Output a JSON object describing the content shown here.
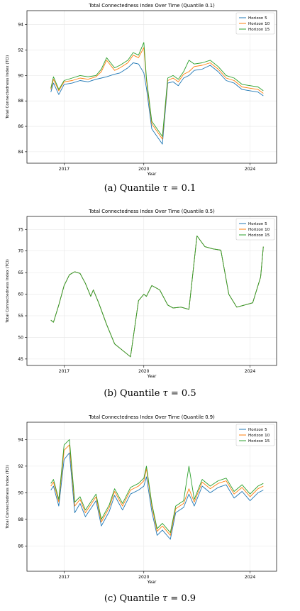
{
  "panels": [
    {
      "caption_label": "(a)",
      "caption_text": "Quantile",
      "caption_symbol": "τ",
      "caption_value": "= 0.1",
      "chart": {
        "type": "line",
        "title": "Total Connectedness Index Over Time (Quantile 0.1)",
        "xlabel": "Year",
        "ylabel": "Total Connectedness Index (TCI)",
        "xlim": [
          2015.6,
          2025.0
        ],
        "ylim": [
          83.1,
          95.1
        ],
        "yticks": [
          84,
          86,
          88,
          90,
          92,
          94
        ],
        "xticks": [
          2017,
          2020,
          2024
        ],
        "grid": true,
        "legend_position": "top-right",
        "series": [
          {
            "name": "Horizon 5",
            "color": "#1f77b4",
            "x": [
              2016.5,
              2016.6,
              2016.8,
              2017.0,
              2017.3,
              2017.6,
              2017.9,
              2018.2,
              2018.4,
              2018.6,
              2018.9,
              2019.1,
              2019.4,
              2019.6,
              2019.8,
              2020.0,
              2020.1,
              2020.3,
              2020.5,
              2020.7,
              2020.9,
              2021.1,
              2021.3,
              2021.5,
              2021.7,
              2021.9,
              2022.2,
              2022.5,
              2022.8,
              2023.1,
              2023.4,
              2023.7,
              2024.0,
              2024.3,
              2024.5
            ],
            "y": [
              88.7,
              89.4,
              88.5,
              89.3,
              89.4,
              89.6,
              89.5,
              89.7,
              89.8,
              89.9,
              90.1,
              90.2,
              90.6,
              91.0,
              90.9,
              90.2,
              89.0,
              85.8,
              85.2,
              84.6,
              89.4,
              89.5,
              89.2,
              89.8,
              90.0,
              90.4,
              90.5,
              90.8,
              90.3,
              89.6,
              89.4,
              88.9,
              88.8,
              88.7,
              88.4
            ]
          },
          {
            "name": "Horizon 10",
            "color": "#ff7f0e",
            "x": [
              2016.5,
              2016.6,
              2016.8,
              2017.0,
              2017.3,
              2017.6,
              2017.9,
              2018.2,
              2018.4,
              2018.6,
              2018.9,
              2019.1,
              2019.4,
              2019.6,
              2019.8,
              2020.0,
              2020.1,
              2020.3,
              2020.5,
              2020.7,
              2020.9,
              2021.1,
              2021.3,
              2021.5,
              2021.7,
              2021.9,
              2022.2,
              2022.5,
              2022.8,
              2023.1,
              2023.4,
              2023.7,
              2024.0,
              2024.3,
              2024.5
            ],
            "y": [
              88.9,
              89.7,
              88.8,
              89.5,
              89.6,
              89.8,
              89.7,
              89.9,
              90.3,
              91.2,
              90.4,
              90.6,
              91.0,
              91.6,
              91.4,
              92.2,
              89.6,
              86.2,
              85.6,
              85.0,
              89.6,
              89.8,
              89.5,
              90.1,
              90.3,
              90.7,
              90.8,
              91.0,
              90.5,
              89.8,
              89.6,
              89.1,
              89.0,
              88.9,
              88.6
            ]
          },
          {
            "name": "Horizon 15",
            "color": "#2ca02c",
            "x": [
              2016.5,
              2016.6,
              2016.8,
              2017.0,
              2017.3,
              2017.6,
              2017.9,
              2018.2,
              2018.4,
              2018.6,
              2018.9,
              2019.1,
              2019.4,
              2019.6,
              2019.8,
              2020.0,
              2020.1,
              2020.3,
              2020.5,
              2020.7,
              2020.9,
              2021.1,
              2021.3,
              2021.5,
              2021.7,
              2021.9,
              2022.2,
              2022.5,
              2022.8,
              2023.1,
              2023.4,
              2023.7,
              2024.0,
              2024.3,
              2024.5
            ],
            "y": [
              89.0,
              89.9,
              88.9,
              89.6,
              89.8,
              90.0,
              89.9,
              90.0,
              90.5,
              91.4,
              90.6,
              90.8,
              91.2,
              91.8,
              91.6,
              92.6,
              89.8,
              86.4,
              85.8,
              85.2,
              89.8,
              90.0,
              89.7,
              90.3,
              91.2,
              90.9,
              91.0,
              91.2,
              90.7,
              90.0,
              89.8,
              89.3,
              89.2,
              89.1,
              88.8
            ]
          }
        ]
      }
    },
    {
      "caption_label": "(b)",
      "caption_text": "Quantile",
      "caption_symbol": "τ",
      "caption_value": "= 0.5",
      "chart": {
        "type": "line",
        "title": "Total Connectedness Index Over Time (Quantile 0.5)",
        "xlabel": "Year",
        "ylabel": "Total Connectedness Index (TCI)",
        "xlim": [
          2015.6,
          2025.0
        ],
        "ylim": [
          43.5,
          78.0
        ],
        "yticks": [
          45,
          50,
          55,
          60,
          65,
          70,
          75
        ],
        "xticks": [
          2017,
          2020,
          2024
        ],
        "grid": true,
        "legend_position": "top-right",
        "series": [
          {
            "name": "Horizon 5",
            "color": "#1f77b4",
            "x": [
              2016.5,
              2016.6,
              2016.8,
              2017.0,
              2017.2,
              2017.4,
              2017.6,
              2017.8,
              2018.0,
              2018.1,
              2018.3,
              2018.6,
              2018.9,
              2019.2,
              2019.5,
              2019.8,
              2020.0,
              2020.1,
              2020.3,
              2020.6,
              2020.9,
              2021.1,
              2021.4,
              2021.7,
              2022.0,
              2022.3,
              2022.6,
              2022.9,
              2023.2,
              2023.5,
              2023.8,
              2024.1,
              2024.4,
              2024.5
            ],
            "y": [
              54.0,
              53.5,
              57.5,
              62.0,
              64.5,
              65.2,
              64.8,
              62.5,
              59.5,
              61.0,
              58.0,
              53.0,
              48.5,
              47.0,
              45.5,
              58.5,
              60.0,
              59.5,
              62.0,
              61.0,
              57.5,
              56.8,
              57.0,
              56.5,
              73.5,
              71.0,
              70.5,
              70.2,
              60.0,
              57.0,
              57.5,
              58.0,
              64.0,
              71.0
            ]
          },
          {
            "name": "Horizon 10",
            "color": "#ff7f0e",
            "x": [
              2016.5,
              2016.6,
              2016.8,
              2017.0,
              2017.2,
              2017.4,
              2017.6,
              2017.8,
              2018.0,
              2018.1,
              2018.3,
              2018.6,
              2018.9,
              2019.2,
              2019.5,
              2019.8,
              2020.0,
              2020.1,
              2020.3,
              2020.6,
              2020.9,
              2021.1,
              2021.4,
              2021.7,
              2022.0,
              2022.3,
              2022.6,
              2022.9,
              2023.2,
              2023.5,
              2023.8,
              2024.1,
              2024.4,
              2024.5
            ],
            "y": [
              54.0,
              53.5,
              57.5,
              62.0,
              64.5,
              65.2,
              64.8,
              62.5,
              59.5,
              61.0,
              58.0,
              53.0,
              48.5,
              47.0,
              45.5,
              58.5,
              60.0,
              59.5,
              62.0,
              61.0,
              57.5,
              56.8,
              57.0,
              56.5,
              73.5,
              71.0,
              70.5,
              70.2,
              60.0,
              57.0,
              57.5,
              58.0,
              64.0,
              71.0
            ]
          },
          {
            "name": "Horizon 15",
            "color": "#2ca02c",
            "x": [
              2016.5,
              2016.6,
              2016.8,
              2017.0,
              2017.2,
              2017.4,
              2017.6,
              2017.8,
              2018.0,
              2018.1,
              2018.3,
              2018.6,
              2018.9,
              2019.2,
              2019.5,
              2019.8,
              2020.0,
              2020.1,
              2020.3,
              2020.6,
              2020.9,
              2021.1,
              2021.4,
              2021.7,
              2022.0,
              2022.3,
              2022.6,
              2022.9,
              2023.2,
              2023.5,
              2023.8,
              2024.1,
              2024.4,
              2024.5
            ],
            "y": [
              54.0,
              53.5,
              57.5,
              62.0,
              64.5,
              65.2,
              64.8,
              62.5,
              59.5,
              61.0,
              58.0,
              53.0,
              48.5,
              47.0,
              45.5,
              58.5,
              60.0,
              59.5,
              62.0,
              61.0,
              57.5,
              56.8,
              57.0,
              56.5,
              73.5,
              71.0,
              70.5,
              70.2,
              60.0,
              57.0,
              57.5,
              58.0,
              64.0,
              71.0
            ]
          }
        ]
      }
    },
    {
      "caption_label": "(c)",
      "caption_text": "Quantile",
      "caption_symbol": "τ",
      "caption_value": "= 0.9",
      "chart": {
        "type": "line",
        "title": "Total Connectedness Index Over Time (Quantile 0.9)",
        "xlabel": "Year",
        "ylabel": "Total Connectedness Index (TCI)",
        "xlim": [
          2015.6,
          2025.0
        ],
        "ylim": [
          84.1,
          95.3
        ],
        "yticks": [
          86,
          88,
          90,
          92,
          94
        ],
        "xticks": [
          2017,
          2020,
          2024
        ],
        "grid": true,
        "legend_position": "top-right",
        "series": [
          {
            "name": "Horizon 5",
            "color": "#1f77b4",
            "x": [
              2016.5,
              2016.6,
              2016.8,
              2017.0,
              2017.2,
              2017.4,
              2017.6,
              2017.8,
              2018.0,
              2018.2,
              2018.4,
              2018.7,
              2018.9,
              2019.2,
              2019.5,
              2019.8,
              2020.0,
              2020.1,
              2020.3,
              2020.5,
              2020.7,
              2021.0,
              2021.2,
              2021.5,
              2021.7,
              2021.9,
              2022.2,
              2022.5,
              2022.8,
              2023.1,
              2023.4,
              2023.7,
              2024.0,
              2024.3,
              2024.5
            ],
            "y": [
              90.2,
              90.5,
              89.0,
              92.5,
              93.0,
              88.5,
              89.2,
              88.2,
              88.8,
              89.4,
              87.5,
              88.6,
              89.8,
              88.7,
              89.9,
              90.2,
              90.5,
              91.2,
              88.6,
              86.8,
              87.2,
              86.5,
              88.5,
              88.9,
              89.9,
              89.0,
              90.5,
              90.0,
              90.4,
              90.6,
              89.6,
              90.1,
              89.4,
              90.0,
              90.2
            ]
          },
          {
            "name": "Horizon 10",
            "color": "#ff7f0e",
            "x": [
              2016.5,
              2016.6,
              2016.8,
              2017.0,
              2017.2,
              2017.4,
              2017.6,
              2017.8,
              2018.0,
              2018.2,
              2018.4,
              2018.7,
              2018.9,
              2019.2,
              2019.5,
              2019.8,
              2020.0,
              2020.1,
              2020.3,
              2020.5,
              2020.7,
              2021.0,
              2021.2,
              2021.5,
              2021.7,
              2021.9,
              2022.2,
              2022.5,
              2022.8,
              2023.1,
              2023.4,
              2023.7,
              2024.0,
              2024.3,
              2024.5
            ],
            "y": [
              90.5,
              90.8,
              89.3,
              93.2,
              93.6,
              89.0,
              89.5,
              88.5,
              89.1,
              89.7,
              87.8,
              88.9,
              90.1,
              89.0,
              90.2,
              90.5,
              90.9,
              91.8,
              89.0,
              87.1,
              87.5,
              86.8,
              88.8,
              89.2,
              90.3,
              89.3,
              90.8,
              90.3,
              90.7,
              90.9,
              89.9,
              90.4,
              89.7,
              90.3,
              90.5
            ]
          },
          {
            "name": "Horizon 15",
            "color": "#2ca02c",
            "x": [
              2016.5,
              2016.6,
              2016.8,
              2017.0,
              2017.2,
              2017.4,
              2017.6,
              2017.8,
              2018.0,
              2018.2,
              2018.4,
              2018.7,
              2018.9,
              2019.2,
              2019.5,
              2019.8,
              2020.0,
              2020.1,
              2020.3,
              2020.5,
              2020.7,
              2021.0,
              2021.2,
              2021.5,
              2021.7,
              2021.9,
              2022.2,
              2022.5,
              2022.8,
              2023.1,
              2023.4,
              2023.7,
              2024.0,
              2024.3,
              2024.5
            ],
            "y": [
              90.7,
              91.0,
              89.5,
              93.6,
              94.0,
              89.3,
              89.7,
              88.7,
              89.3,
              89.9,
              88.0,
              89.1,
              90.3,
              89.2,
              90.4,
              90.7,
              91.1,
              92.0,
              89.2,
              87.3,
              87.7,
              87.0,
              89.0,
              89.4,
              92.0,
              89.5,
              91.0,
              90.5,
              90.9,
              91.1,
              90.1,
              90.6,
              89.9,
              90.5,
              90.7
            ]
          }
        ]
      }
    }
  ]
}
